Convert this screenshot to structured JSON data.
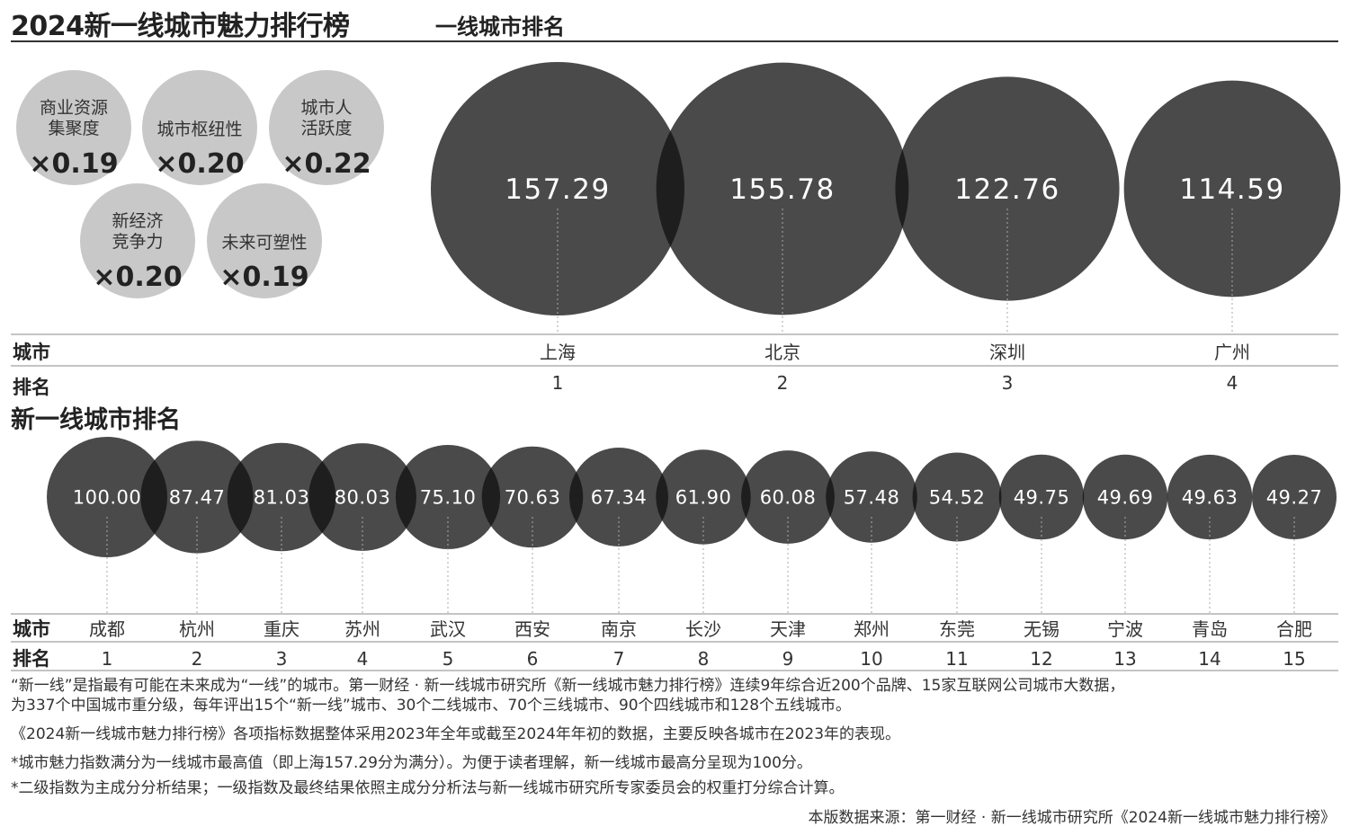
{
  "title": "2024新一线城市魅力排行榜",
  "factors": [
    {
      "label_lines": [
        "商业资源",
        "集聚度"
      ],
      "weight": "×0.19"
    },
    {
      "label_lines": [
        "城市枢纽性"
      ],
      "weight": "×0.20"
    },
    {
      "label_lines": [
        "城市人",
        "活跃度"
      ],
      "weight": "×0.22"
    },
    {
      "label_lines": [
        "新经济",
        "竞争力"
      ],
      "weight": "×0.20"
    },
    {
      "label_lines": [
        "未来可塑性"
      ],
      "weight": "×0.19"
    }
  ],
  "table_labels": {
    "city": "城市",
    "rank": "排名"
  },
  "colors": {
    "bubble": "#4a4a4a",
    "overlap": "#1e1e1e",
    "factor": "#c8c8c8",
    "rule": "#888888"
  },
  "chart_data": [
    {
      "type": "bubble",
      "title": "一线城市排名",
      "categories": [
        "上海",
        "北京",
        "深圳",
        "广州"
      ],
      "values": [
        157.29,
        155.78,
        122.76,
        114.59
      ],
      "value_labels": [
        "157.29",
        "155.78",
        "122.76",
        "114.59"
      ],
      "ranks": [
        "1",
        "2",
        "3",
        "4"
      ]
    },
    {
      "type": "bubble",
      "title": "新一线城市排名",
      "categories": [
        "成都",
        "杭州",
        "重庆",
        "苏州",
        "武汉",
        "西安",
        "南京",
        "长沙",
        "天津",
        "郑州",
        "东莞",
        "无锡",
        "宁波",
        "青岛",
        "合肥"
      ],
      "values": [
        100.0,
        87.47,
        81.03,
        80.03,
        75.1,
        70.63,
        67.34,
        61.9,
        60.08,
        57.48,
        54.52,
        49.75,
        49.69,
        49.63,
        49.27
      ],
      "value_labels": [
        "100.00",
        "87.47",
        "81.03",
        "80.03",
        "75.10",
        "70.63",
        "67.34",
        "61.90",
        "60.08",
        "57.48",
        "54.52",
        "49.75",
        "49.69",
        "49.63",
        "49.27"
      ],
      "ranks": [
        "1",
        "2",
        "3",
        "4",
        "5",
        "6",
        "7",
        "8",
        "9",
        "10",
        "11",
        "12",
        "13",
        "14",
        "15"
      ]
    }
  ],
  "notes": [
    "“新一线”是指最有可能在未来成为“一线”的城市。第一财经 · 新一线城市研究所《新一线城市魅力排行榜》连续9年综合近200个品牌、15家互联网公司城市大数据，",
    "为337个中国城市重分级，每年评出15个“新一线”城市、30个二线城市、70个三线城市、90个四线城市和128个五线城市。",
    "《2024新一线城市魅力排行榜》各项指标数据整体采用2023年全年或截至2024年年初的数据，主要反映各城市在2023年的表现。",
    "*城市魅力指数满分为一线城市最高值（即上海157.29分为满分）。为便于读者理解，新一线城市最高分呈现为100分。",
    "*二级指数为主成分分析结果；一级指数及最终结果依照主成分分析法与新一线城市研究所专家委员会的权重打分综合计算。"
  ],
  "source": "本版数据来源：第一财经 · 新一线城市研究所《2024新一线城市魅力排行榜》"
}
